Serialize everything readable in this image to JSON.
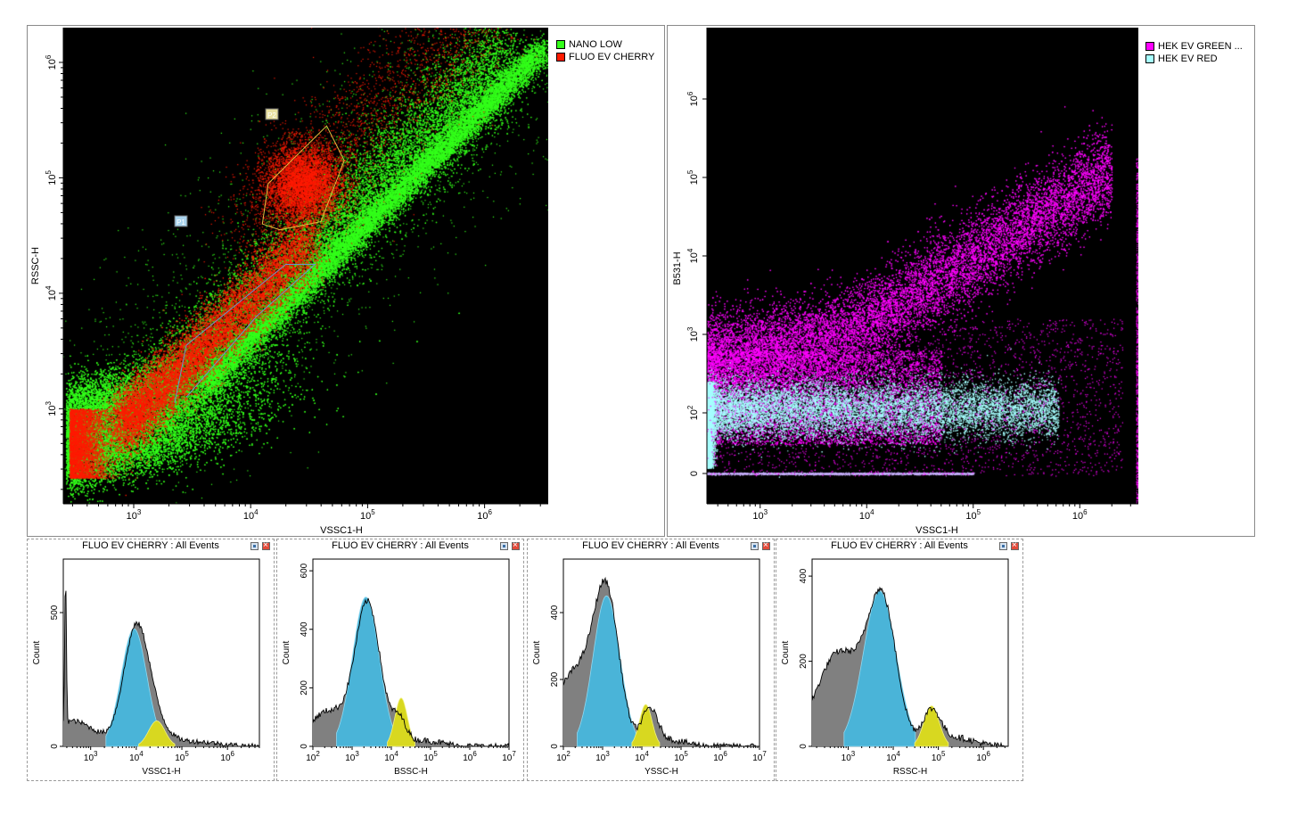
{
  "colors": {
    "green": "#33ff1a",
    "red": "#ff1a00",
    "magenta": "#ff00ff",
    "cyan": "#a6ffff",
    "hist_blue": "#4ab4d8",
    "hist_yellow": "#d8d820",
    "hist_gray": "#808080"
  },
  "chart_data": [
    {
      "id": "scatter1",
      "type": "scatter",
      "xlabel": "VSSC1-H",
      "ylabel": "RSSC-H",
      "x_scale": "log",
      "y_scale": "log",
      "x_ticks": [
        {
          "exp": "3"
        },
        {
          "exp": "4"
        },
        {
          "exp": "5"
        },
        {
          "exp": "6"
        }
      ],
      "y_ticks": [
        {
          "exp": "3"
        },
        {
          "exp": "4"
        },
        {
          "exp": "5"
        },
        {
          "exp": "6"
        }
      ],
      "xlim": [
        250,
        3500000
      ],
      "ylim": [
        150,
        2000000
      ],
      "legend": {
        "position": "right",
        "entries": [
          {
            "label": "NANO LOW",
            "color": "#33ff1a"
          },
          {
            "label": "FLUO EV CHERRY",
            "color": "#ff1a00"
          }
        ]
      },
      "gates": [
        {
          "name": "P1",
          "color": "#6699cc"
        },
        {
          "name": "P2",
          "color": "#e0c040"
        }
      ]
    },
    {
      "id": "scatter2",
      "type": "scatter",
      "xlabel": "VSSC1-H",
      "ylabel": "B531-H",
      "x_scale": "log",
      "y_scale": "biexponential",
      "x_ticks": [
        {
          "exp": "3"
        },
        {
          "exp": "4"
        },
        {
          "exp": "5"
        },
        {
          "exp": "6"
        }
      ],
      "y_ticks": [
        {
          "exp": "2"
        },
        {
          "exp": "3"
        },
        {
          "exp": "4"
        },
        {
          "exp": "5"
        },
        {
          "exp": "6"
        }
      ],
      "y_zero_label": "0",
      "legend": {
        "position": "right",
        "entries": [
          {
            "label": "HEK EV GREEN ...",
            "color": "#ff00ff"
          },
          {
            "label": "HEK EV RED",
            "color": "#a6ffff"
          }
        ]
      }
    },
    {
      "id": "hist1",
      "type": "area",
      "title": "FLUO EV CHERRY : All Events",
      "xlabel": "VSSC1-H",
      "ylabel": "Count",
      "y_ticks": [
        "0",
        "500"
      ],
      "x_ticks": [
        {
          "exp": "3"
        },
        {
          "exp": "4"
        },
        {
          "exp": "5"
        },
        {
          "exp": "6"
        }
      ],
      "peak_count": 470,
      "ymax": 700
    },
    {
      "id": "hist2",
      "type": "area",
      "title": "FLUO EV CHERRY : All Events",
      "xlabel": "BSSC-H",
      "ylabel": "Count",
      "y_ticks": [
        "0",
        "200",
        "400",
        "600"
      ],
      "x_ticks": [
        {
          "exp": "2"
        },
        {
          "exp": "3"
        },
        {
          "exp": "4"
        },
        {
          "exp": "5"
        },
        {
          "exp": "6"
        },
        {
          "exp": "7"
        }
      ],
      "peak_count": 520,
      "ymax": 640
    },
    {
      "id": "hist3",
      "type": "area",
      "title": "FLUO EV CHERRY : All Events",
      "xlabel": "YSSC-H",
      "ylabel": "Count",
      "y_ticks": [
        "0",
        "200",
        "400"
      ],
      "x_ticks": [
        {
          "exp": "2"
        },
        {
          "exp": "3"
        },
        {
          "exp": "4"
        },
        {
          "exp": "5"
        },
        {
          "exp": "6"
        },
        {
          "exp": "7"
        }
      ],
      "peak_count": 470,
      "ymax": 560
    },
    {
      "id": "hist4",
      "type": "area",
      "title": "FLUO EV CHERRY : All Events",
      "xlabel": "RSSC-H",
      "ylabel": "Count",
      "y_ticks": [
        "0",
        "200",
        "400"
      ],
      "x_ticks": [
        {
          "exp": "3"
        },
        {
          "exp": "4"
        },
        {
          "exp": "5"
        },
        {
          "exp": "6"
        }
      ],
      "peak_count": 380,
      "ymax": 440
    }
  ]
}
